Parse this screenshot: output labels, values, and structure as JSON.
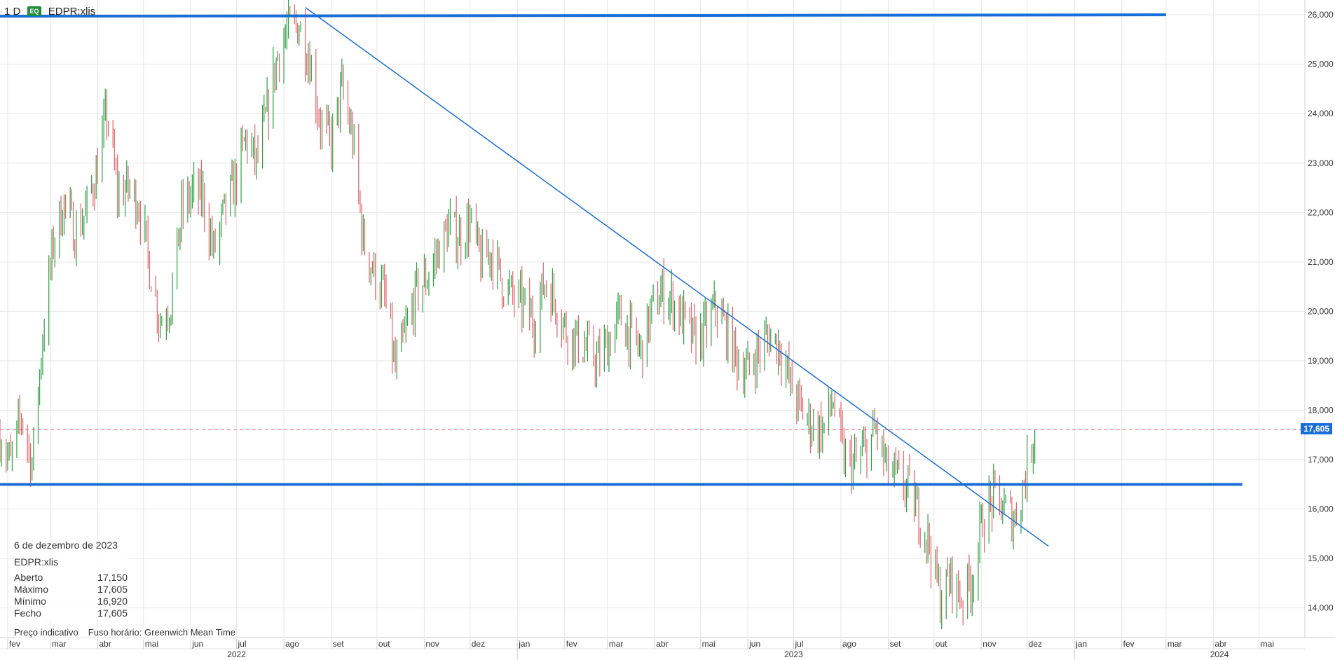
{
  "header": {
    "interval": "1 D",
    "badge": "EQ",
    "symbol": "EDPR:xlis"
  },
  "info": {
    "date": "6 de dezembro de 2023",
    "symbol": "EDPR:xlis",
    "rows": [
      {
        "label": "Aberto",
        "value": "17,150"
      },
      {
        "label": "Máximo",
        "value": "17,605"
      },
      {
        "label": "Mínimo",
        "value": "16,920"
      },
      {
        "label": "Fecho",
        "value": "17,605"
      }
    ]
  },
  "footer": {
    "note": "Preço indicativo",
    "timezone": "Fuso horário: Greenwich Mean Time"
  },
  "last_price_label": "17,605",
  "colors": {
    "up": "#2ea043",
    "down": "#e0636b",
    "line": "#1a6ed8",
    "grid": "#e6e6e6",
    "dashed": "#e0636b"
  },
  "chart_data": {
    "type": "ohlc",
    "x_labels": [
      "fev",
      "mar",
      "abr",
      "mai",
      "jun",
      "jul",
      "ago",
      "set",
      "out",
      "nov",
      "dez",
      "jan",
      "fev",
      "mar",
      "abr",
      "mai",
      "jun",
      "jul",
      "ago",
      "set",
      "out",
      "nov",
      "dez",
      "jan",
      "fev",
      "mar",
      "abr",
      "mai"
    ],
    "year_labels": [
      "2022",
      "2023",
      "2024"
    ],
    "y_ticks": [
      "14,000",
      "15,000",
      "16,000",
      "17,000",
      "18,000",
      "19,000",
      "20,000",
      "21,000",
      "22,000",
      "23,000",
      "24,000",
      "25,000",
      "26,000"
    ],
    "ylim": [
      13.4,
      26.3
    ],
    "xlim": [
      "2022-01-27",
      "2024-05-31"
    ],
    "series_close": [
      [
        "2022-01-27",
        17.5
      ],
      [
        "2022-02-03",
        16.9
      ],
      [
        "2022-02-10",
        17.9
      ],
      [
        "2022-02-17",
        16.9
      ],
      [
        "2022-02-24",
        19.5
      ],
      [
        "2022-03-03",
        21.4
      ],
      [
        "2022-03-10",
        22.2
      ],
      [
        "2022-03-17",
        21.6
      ],
      [
        "2022-03-24",
        22.0
      ],
      [
        "2022-03-31",
        22.8
      ],
      [
        "2022-04-07",
        24.0
      ],
      [
        "2022-04-14",
        22.4
      ],
      [
        "2022-04-21",
        22.5
      ],
      [
        "2022-04-28",
        22.2
      ],
      [
        "2022-05-05",
        20.9
      ],
      [
        "2022-05-12",
        19.8
      ],
      [
        "2022-05-19",
        20.2
      ],
      [
        "2022-05-26",
        22.0
      ],
      [
        "2022-06-02",
        22.4
      ],
      [
        "2022-06-09",
        22.3
      ],
      [
        "2022-06-16",
        21.2
      ],
      [
        "2022-06-23",
        22.0
      ],
      [
        "2022-06-30",
        22.6
      ],
      [
        "2022-07-07",
        23.5
      ],
      [
        "2022-07-14",
        23.0
      ],
      [
        "2022-07-21",
        24.0
      ],
      [
        "2022-07-28",
        25.2
      ],
      [
        "2022-08-04",
        25.7
      ],
      [
        "2022-08-11",
        25.8
      ],
      [
        "2022-08-18",
        25.1
      ],
      [
        "2022-08-25",
        23.8
      ],
      [
        "2022-09-01",
        23.4
      ],
      [
        "2022-09-08",
        24.5
      ],
      [
        "2022-09-15",
        23.5
      ],
      [
        "2022-09-22",
        21.4
      ],
      [
        "2022-09-29",
        20.8
      ],
      [
        "2022-10-06",
        20.3
      ],
      [
        "2022-10-13",
        18.8
      ],
      [
        "2022-10-20",
        19.6
      ],
      [
        "2022-10-27",
        20.4
      ],
      [
        "2022-11-03",
        20.7
      ],
      [
        "2022-11-10",
        21.2
      ],
      [
        "2022-11-17",
        21.7
      ],
      [
        "2022-11-24",
        21.5
      ],
      [
        "2022-12-01",
        21.8
      ],
      [
        "2022-12-08",
        21.0
      ],
      [
        "2022-12-15",
        21.2
      ],
      [
        "2022-12-22",
        20.6
      ],
      [
        "2022-12-29",
        20.3
      ],
      [
        "2023-01-05",
        20.1
      ],
      [
        "2023-01-12",
        19.8
      ],
      [
        "2023-01-19",
        20.6
      ],
      [
        "2023-01-26",
        20.2
      ],
      [
        "2023-02-02",
        19.6
      ],
      [
        "2023-02-09",
        19.4
      ],
      [
        "2023-02-16",
        19.2
      ],
      [
        "2023-02-23",
        19.0
      ],
      [
        "2023-03-02",
        19.4
      ],
      [
        "2023-03-09",
        19.9
      ],
      [
        "2023-03-16",
        19.5
      ],
      [
        "2023-03-23",
        19.2
      ],
      [
        "2023-03-30",
        20.0
      ],
      [
        "2023-04-06",
        20.4
      ],
      [
        "2023-04-13",
        20.2
      ],
      [
        "2023-04-20",
        19.8
      ],
      [
        "2023-04-27",
        19.4
      ],
      [
        "2023-05-04",
        19.6
      ],
      [
        "2023-05-11",
        20.1
      ],
      [
        "2023-05-18",
        19.6
      ],
      [
        "2023-05-25",
        19.0
      ],
      [
        "2023-06-01",
        18.8
      ],
      [
        "2023-06-08",
        19.2
      ],
      [
        "2023-06-15",
        19.5
      ],
      [
        "2023-06-22",
        19.3
      ],
      [
        "2023-06-29",
        18.5
      ],
      [
        "2023-07-06",
        18.0
      ],
      [
        "2023-07-13",
        17.7
      ],
      [
        "2023-07-20",
        17.6
      ],
      [
        "2023-07-27",
        18.2
      ],
      [
        "2023-08-03",
        17.0
      ],
      [
        "2023-08-10",
        16.9
      ],
      [
        "2023-08-17",
        17.2
      ],
      [
        "2023-08-24",
        17.6
      ],
      [
        "2023-08-31",
        16.8
      ],
      [
        "2023-09-07",
        16.6
      ],
      [
        "2023-09-14",
        16.4
      ],
      [
        "2023-09-21",
        15.9
      ],
      [
        "2023-09-28",
        15.3
      ],
      [
        "2023-10-05",
        14.2
      ],
      [
        "2023-10-12",
        14.6
      ],
      [
        "2023-10-19",
        14.2
      ],
      [
        "2023-10-26",
        14.6
      ],
      [
        "2023-11-02",
        15.8
      ],
      [
        "2023-11-09",
        16.2
      ],
      [
        "2023-11-16",
        16.0
      ],
      [
        "2023-11-23",
        15.8
      ],
      [
        "2023-11-30",
        16.7
      ],
      [
        "2023-12-06",
        17.605
      ]
    ],
    "horizontal_lines": [
      26.0,
      16.5
    ],
    "trendline": [
      [
        "2022-08-15",
        26.15
      ],
      [
        "2023-12-15",
        15.25
      ]
    ],
    "last_price": 17.605
  }
}
